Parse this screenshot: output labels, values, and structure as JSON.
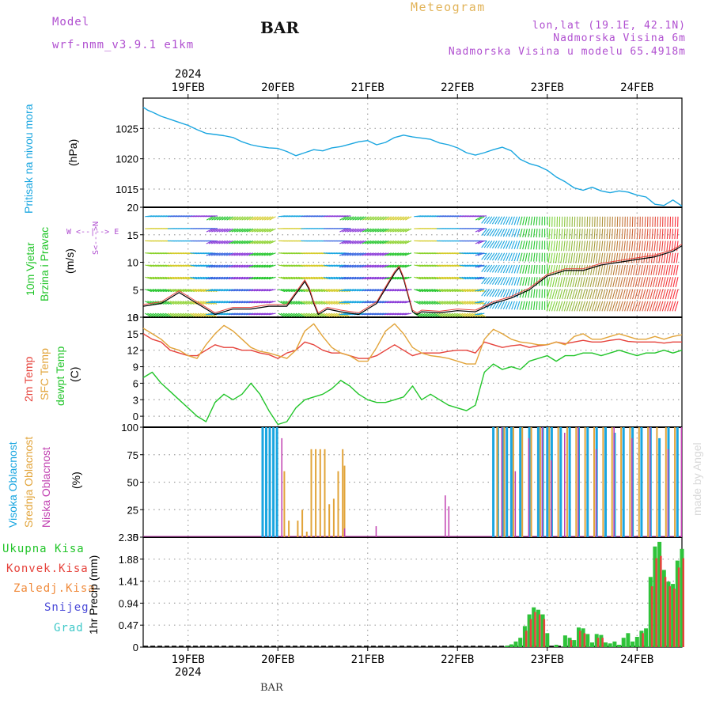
{
  "header": {
    "model_label": "Model",
    "model_name": "wrf-nmm_v3.9.1  e1km",
    "station": "BAR",
    "meteogram_title": "Meteogram",
    "lonlat": "lon,lat (19.1E, 42.1N)",
    "altitude": "Nadmorska Visina 6m",
    "model_altitude": "Nadmorska Visina u modelu 65.4918m",
    "bottom_station": "BAR",
    "watermark": "made by Angel"
  },
  "colors": {
    "pressure": "#1aa6e0",
    "temp2m": "#e6433c",
    "sfc": "#e2a43a",
    "dew": "#22c52a",
    "cloud_high": "#1aa6e0",
    "cloud_mid": "#e2a43a",
    "cloud_low": "#c03fb0",
    "precip_total": "#2fc33a",
    "precip_conv": "#e6433c",
    "axes": "#000000",
    "grid": "#a0a0a0",
    "wind_label": "#22c52a",
    "snow": "#4a4ad8",
    "grad": "#3ec8c8",
    "zaledj": "#f08a3a"
  },
  "time_axis": {
    "year": "2024",
    "ticks": [
      "19FEB",
      "20FEB",
      "21FEB",
      "22FEB",
      "23FEB",
      "24FEB"
    ]
  },
  "chart_data": [
    {
      "type": "line",
      "panel": "pressure",
      "ylabel": "(hPa)",
      "side_label": "Pritisak na nivou mora",
      "yticks": [
        "1015",
        "1020",
        "1025"
      ],
      "ylim": [
        1012,
        1030
      ],
      "series": [
        {
          "x": [
            18.5,
            18.55,
            18.6,
            18.7,
            18.8,
            18.9,
            19.0,
            19.1,
            19.2,
            19.3,
            19.4,
            19.5,
            19.6,
            19.7,
            19.8,
            19.9,
            20.0,
            20.1,
            20.2,
            20.3,
            20.4,
            20.5,
            20.6,
            20.7,
            20.8,
            20.9,
            21.0,
            21.1,
            21.2,
            21.3,
            21.4,
            21.5,
            21.6,
            21.7,
            21.8,
            21.9,
            22.0,
            22.1,
            22.2,
            22.3,
            22.4,
            22.5,
            22.6,
            22.7,
            22.8,
            22.9,
            23.0,
            23.1,
            23.2,
            23.3,
            23.4,
            23.5,
            23.6,
            23.7,
            23.8,
            23.9,
            24.0,
            24.1,
            24.2,
            24.3,
            24.4,
            24.5
          ],
          "values": [
            1028.5,
            1028.0,
            1027.7,
            1027.0,
            1026.5,
            1026.0,
            1025.5,
            1024.8,
            1024.2,
            1024.0,
            1023.8,
            1023.5,
            1022.8,
            1022.3,
            1022.0,
            1021.8,
            1021.7,
            1021.2,
            1020.5,
            1021.0,
            1021.5,
            1021.3,
            1021.8,
            1022.0,
            1022.4,
            1022.8,
            1023.0,
            1022.3,
            1022.7,
            1023.5,
            1023.9,
            1023.6,
            1023.4,
            1023.2,
            1022.6,
            1022.3,
            1021.8,
            1021.0,
            1020.6,
            1021.0,
            1021.5,
            1021.9,
            1021.3,
            1019.9,
            1019.2,
            1018.8,
            1018.1,
            1017.0,
            1016.2,
            1015.2,
            1014.8,
            1015.3,
            1014.7,
            1014.4,
            1014.7,
            1014.5,
            1014.0,
            1013.7,
            1012.5,
            1012.3,
            1013.2,
            1012.2
          ]
        }
      ]
    },
    {
      "type": "line",
      "panel": "wind",
      "ylabel": "(m/s)",
      "side_label_1": "10m Vjetar",
      "side_label_2": "Brzina i Pravac",
      "compass_vertical": "S<--->N",
      "compass_horizontal": "W <--|--> E",
      "yticks": [
        "0",
        "5",
        "10",
        "15",
        "20"
      ],
      "ylim": [
        0,
        20
      ],
      "series": [
        {
          "name": "wind_speed",
          "x": [
            18.5,
            18.7,
            18.9,
            19.1,
            19.3,
            19.5,
            19.7,
            19.9,
            20.1,
            20.3,
            20.35,
            20.4,
            20.45,
            20.55,
            20.7,
            20.9,
            21.1,
            21.3,
            21.35,
            21.4,
            21.45,
            21.5,
            21.55,
            21.6,
            21.8,
            22.0,
            22.2,
            22.4,
            22.6,
            22.8,
            23.0,
            23.2,
            23.4,
            23.6,
            23.8,
            24.0,
            24.2,
            24.4,
            24.5
          ],
          "values": [
            2.0,
            2.5,
            4.5,
            2.5,
            0.5,
            1.5,
            1.5,
            2.0,
            2.0,
            6.5,
            5.0,
            2.5,
            0.5,
            1.5,
            1.0,
            0.5,
            2.5,
            8.0,
            9.0,
            7.0,
            4.0,
            1.0,
            0.5,
            1.0,
            0.8,
            1.2,
            1.0,
            2.5,
            3.5,
            5.0,
            7.5,
            8.5,
            8.5,
            9.5,
            10.0,
            10.5,
            11.0,
            12.0,
            13.0
          ]
        }
      ]
    },
    {
      "type": "line",
      "panel": "temperature",
      "ylabel": "(C)",
      "side_label_2m": "2m Temp",
      "side_label_sfc": "SFC Temp",
      "side_label_dew": "dewpt Temp",
      "yticks": [
        "0",
        "3",
        "6",
        "9",
        "12",
        "15",
        "18"
      ],
      "ylim": [
        -2,
        18
      ],
      "x": [
        18.5,
        18.6,
        18.7,
        18.8,
        18.9,
        19.0,
        19.1,
        19.2,
        19.3,
        19.4,
        19.5,
        19.6,
        19.7,
        19.8,
        19.9,
        20.0,
        20.1,
        20.2,
        20.3,
        20.4,
        20.5,
        20.6,
        20.7,
        20.8,
        20.9,
        21.0,
        21.1,
        21.2,
        21.3,
        21.4,
        21.5,
        21.6,
        21.7,
        21.8,
        21.9,
        22.0,
        22.1,
        22.2,
        22.3,
        22.4,
        22.5,
        22.6,
        22.7,
        22.8,
        22.9,
        23.0,
        23.1,
        23.2,
        23.3,
        23.4,
        23.5,
        23.6,
        23.7,
        23.8,
        23.9,
        24.0,
        24.1,
        24.2,
        24.3,
        24.4,
        24.5
      ],
      "series": [
        {
          "name": "2m Temp",
          "values": [
            15.0,
            14.0,
            13.5,
            12.0,
            11.5,
            11.0,
            11.0,
            12.0,
            13.0,
            12.5,
            12.5,
            12.0,
            12.0,
            11.5,
            11.2,
            10.5,
            11.5,
            12.0,
            13.5,
            13.0,
            12.0,
            11.5,
            11.5,
            11.0,
            10.5,
            10.5,
            11.0,
            12.0,
            13.0,
            12.0,
            11.0,
            11.5,
            11.5,
            11.5,
            11.8,
            12.0,
            12.0,
            11.5,
            13.5,
            13.0,
            12.5,
            12.8,
            13.0,
            12.5,
            12.8,
            13.0,
            13.5,
            13.2,
            13.5,
            13.8,
            13.5,
            13.5,
            13.8,
            14.0,
            13.6,
            13.5,
            13.5,
            13.5,
            13.3,
            13.5,
            13.5
          ]
        },
        {
          "name": "SFC Temp",
          "values": [
            16.0,
            15.0,
            14.0,
            12.5,
            12.0,
            11.0,
            10.5,
            13.0,
            15.0,
            16.5,
            15.5,
            14.0,
            12.5,
            11.8,
            11.5,
            11.0,
            10.5,
            12.0,
            15.5,
            16.8,
            14.5,
            12.5,
            11.5,
            11.0,
            10.0,
            10.0,
            12.5,
            15.5,
            16.8,
            15.0,
            12.5,
            11.5,
            11.0,
            10.8,
            10.5,
            10.0,
            9.5,
            9.5,
            14.0,
            15.8,
            15.0,
            14.0,
            13.5,
            13.3,
            13.0,
            13.0,
            13.5,
            13.0,
            14.5,
            15.0,
            14.0,
            14.0,
            14.5,
            15.0,
            14.5,
            14.0,
            14.0,
            14.5,
            14.0,
            14.5,
            14.8
          ]
        },
        {
          "name": "dewpt Temp",
          "values": [
            7.0,
            8.0,
            6.0,
            4.5,
            3.0,
            1.5,
            0.0,
            -1.0,
            2.5,
            4.0,
            3.0,
            4.0,
            6.0,
            4.0,
            1.0,
            -1.5,
            -1.0,
            1.5,
            3.0,
            3.5,
            4.0,
            5.0,
            6.5,
            5.5,
            4.0,
            3.0,
            2.5,
            2.5,
            3.0,
            3.5,
            5.5,
            3.0,
            4.0,
            3.0,
            2.0,
            1.5,
            1.0,
            2.0,
            8.0,
            9.5,
            8.5,
            9.0,
            8.5,
            10.0,
            10.5,
            11.0,
            10.0,
            11.0,
            11.0,
            11.5,
            11.5,
            11.0,
            11.5,
            12.0,
            11.5,
            11.0,
            11.5,
            11.5,
            12.0,
            11.5,
            12.0
          ]
        }
      ]
    },
    {
      "type": "bar",
      "panel": "clouds",
      "ylabel": "(%)",
      "side_label_high": "Visoka Oblacnost",
      "side_label_mid": "Srednja Oblacnost",
      "side_label_low": "Niska Oblacnost",
      "yticks": [
        "0",
        "25",
        "50",
        "75",
        "100"
      ],
      "ylim": [
        0,
        100
      ],
      "series": [
        {
          "name": "Visoka Oblacnost",
          "x": [
            19.83,
            19.87,
            19.91,
            19.95,
            19.99,
            22.4,
            22.45,
            22.5,
            22.55,
            22.6,
            22.7,
            22.8,
            22.9,
            22.95,
            23.0,
            23.05,
            23.15,
            23.25,
            23.35,
            23.45,
            23.55,
            23.65,
            23.75,
            23.85,
            23.95,
            24.05,
            24.15,
            24.25,
            24.35,
            24.45
          ],
          "values": [
            100,
            100,
            100,
            100,
            100,
            100,
            100,
            100,
            100,
            100,
            100,
            100,
            100,
            100,
            100,
            100,
            100,
            100,
            100,
            100,
            100,
            100,
            95,
            100,
            100,
            100,
            100,
            90,
            100,
            100
          ]
        },
        {
          "name": "Srednja Oblacnost",
          "x": [
            20.05,
            20.1,
            20.2,
            20.25,
            20.3,
            20.35,
            20.4,
            20.45,
            20.5,
            20.55,
            20.6,
            20.65,
            20.7,
            20.72,
            22.42,
            22.5,
            22.6,
            22.7,
            22.8,
            22.9,
            23.0,
            23.1,
            23.2,
            23.3,
            23.4,
            23.5,
            23.6,
            23.7,
            23.8,
            23.9,
            24.0,
            24.1,
            24.2,
            24.3,
            24.4
          ],
          "values": [
            60,
            15,
            15,
            25,
            5,
            80,
            80,
            80,
            80,
            30,
            35,
            60,
            80,
            65,
            100,
            100,
            100,
            100,
            100,
            100,
            100,
            100,
            100,
            100,
            100,
            100,
            100,
            100,
            100,
            100,
            100,
            100,
            100,
            100,
            100
          ]
        },
        {
          "name": "Niska Oblacnost",
          "x": [
            20.0,
            20.7,
            21.05,
            21.82,
            21.86,
            22.45,
            22.6,
            22.75,
            22.9,
            23.0,
            23.15,
            23.3,
            23.5,
            23.7,
            23.9,
            24.1,
            24.3,
            24.45
          ],
          "values": [
            90,
            8,
            10,
            38,
            28,
            100,
            60,
            90,
            100,
            70,
            95,
            100,
            80,
            100,
            90,
            100,
            80,
            100
          ]
        }
      ]
    },
    {
      "type": "bar",
      "panel": "precipitation",
      "ylabel": "1hr Precip (mm)",
      "side_label_total": "Ukupna Kisa",
      "side_label_conv": "Konvek.Kisa",
      "side_label_zaledj": "Zaledj.Kisa",
      "side_label_snow": "Snijeg",
      "side_label_grad": "Grad",
      "yticks": [
        "0",
        "0.47",
        "0.94",
        "1.41",
        "1.88",
        "2.35"
      ],
      "ylim": [
        0,
        2.35
      ],
      "series": [
        {
          "name": "Ukupna Kisa",
          "x": [
            22.55,
            22.6,
            22.65,
            22.7,
            22.75,
            22.8,
            22.85,
            22.9,
            22.95,
            23.0,
            23.1,
            23.2,
            23.25,
            23.3,
            23.35,
            23.4,
            23.45,
            23.5,
            23.55,
            23.6,
            23.65,
            23.7,
            23.75,
            23.8,
            23.85,
            23.9,
            23.95,
            24.0,
            24.05,
            24.1,
            24.15,
            24.2,
            24.25,
            24.3,
            24.35,
            24.4,
            24.45,
            24.5
          ],
          "values": [
            0.03,
            0.06,
            0.12,
            0.2,
            0.45,
            0.7,
            0.85,
            0.8,
            0.7,
            0.3,
            0.05,
            0.25,
            0.2,
            0.15,
            0.42,
            0.4,
            0.28,
            0.1,
            0.28,
            0.26,
            0.1,
            0.08,
            0.12,
            0.05,
            0.2,
            0.3,
            0.12,
            0.22,
            0.35,
            0.4,
            1.5,
            2.15,
            2.25,
            1.65,
            1.4,
            1.35,
            1.85,
            2.1
          ]
        },
        {
          "name": "Konvek.Kisa",
          "x": [
            22.75,
            22.8,
            22.85,
            22.9,
            22.95,
            23.25,
            23.35,
            23.4,
            23.55,
            23.6,
            24.05,
            24.15,
            24.2,
            24.25,
            24.3,
            24.35,
            24.4,
            24.45,
            24.5
          ],
          "values": [
            0.35,
            0.6,
            0.75,
            0.7,
            0.6,
            0.15,
            0.35,
            0.3,
            0.2,
            0.2,
            0.3,
            1.3,
            1.9,
            1.95,
            1.5,
            1.3,
            1.25,
            1.7,
            1.9
          ]
        }
      ]
    }
  ]
}
